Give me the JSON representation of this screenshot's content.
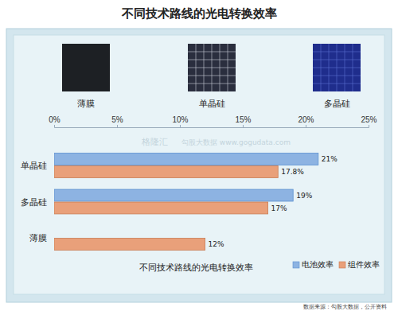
{
  "chart_data": {
    "type": "bar",
    "orientation": "horizontal",
    "title": "不同技术路线的光电转换效率",
    "xlabel": "不同技术路线的光电转换效率",
    "annotations": [
      "薄膜",
      "单晶硅",
      "多晶硅",
      "数据来源：勾股大数据，公开资料",
      "格隆汇",
      "勾股大数据 www.gogudata.com"
    ],
    "categories": [
      "单晶硅",
      "多晶硅",
      "薄膜"
    ],
    "series": [
      {
        "name": "电池效率",
        "color": "#8db3e2",
        "values": [
          21,
          19,
          null
        ],
        "value_labels": [
          "21%",
          "19%",
          null
        ]
      },
      {
        "name": "组件效率",
        "color": "#e9a07a",
        "values": [
          17.8,
          17,
          12
        ],
        "value_labels": [
          "17.8%",
          "17%",
          "12%"
        ]
      }
    ],
    "xlim": [
      0,
      25
    ],
    "xticks": [
      {
        "value": 0,
        "label": "0%"
      },
      {
        "value": 5,
        "label": "5%"
      },
      {
        "value": 10,
        "label": "10%"
      },
      {
        "value": 15,
        "label": "15%"
      },
      {
        "value": 20,
        "label": "20%"
      },
      {
        "value": 25,
        "label": "25%"
      }
    ],
    "grid": false,
    "legend": "bottom-right",
    "data_labels": true,
    "tick_labels": "x"
  }
}
